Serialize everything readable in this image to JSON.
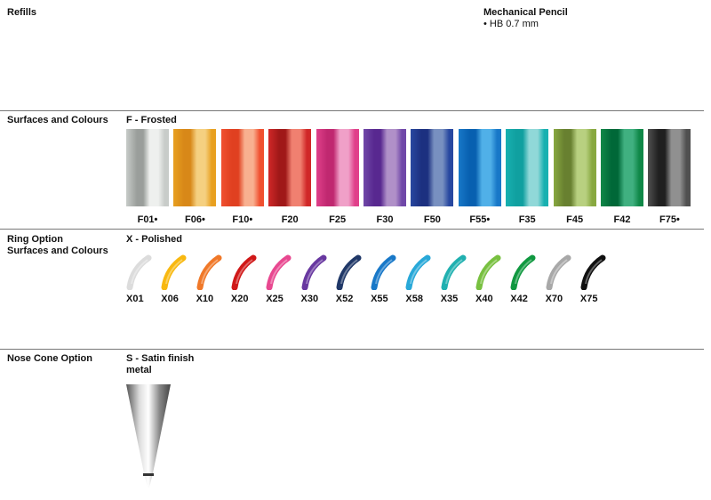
{
  "refills": {
    "heading": "Refills",
    "product": "Mechanical Pencil",
    "detail": "• HB 0.7 mm"
  },
  "surfaces": {
    "heading": "Surfaces and Colours",
    "subheading": "F - Frosted",
    "swatches": [
      {
        "code": "F01•",
        "color": "#c8ccc9",
        "dark": "#9a9e9b",
        "light": "#eef0ee"
      },
      {
        "code": "F06•",
        "color": "#e8a020",
        "dark": "#d88818",
        "light": "#f5d080"
      },
      {
        "code": "F10•",
        "color": "#f05030",
        "dark": "#e04020",
        "light": "#f8b090"
      },
      {
        "code": "F20",
        "color": "#d02828",
        "dark": "#a01818",
        "light": "#f08070"
      },
      {
        "code": "F25",
        "color": "#e0408a",
        "dark": "#c02870",
        "light": "#f0a0c8"
      },
      {
        "code": "F30",
        "color": "#7048a8",
        "dark": "#582890",
        "light": "#b090c8"
      },
      {
        "code": "F50",
        "color": "#2848a0",
        "dark": "#1c3080",
        "light": "#7890c0"
      },
      {
        "code": "F55•",
        "color": "#1878c8",
        "dark": "#0860b0",
        "light": "#50b0e8"
      },
      {
        "code": "F35",
        "color": "#18b0b0",
        "dark": "#10a0a0",
        "light": "#90d8d8"
      },
      {
        "code": "F45",
        "color": "#88a840",
        "dark": "#688030",
        "light": "#b8d080"
      },
      {
        "code": "F42",
        "color": "#108848",
        "dark": "#006838",
        "light": "#40b080"
      },
      {
        "code": "F75•",
        "color": "#505050",
        "dark": "#202020",
        "light": "#909090"
      }
    ]
  },
  "ring": {
    "heading_line1": "Ring Option",
    "heading_line2": "Surfaces and Colours",
    "subheading": "X - Polished",
    "items": [
      {
        "code": "X01",
        "color": "#dcdcdc"
      },
      {
        "code": "X06",
        "color": "#f8b810"
      },
      {
        "code": "X10",
        "color": "#f07828"
      },
      {
        "code": "X20",
        "color": "#d01818"
      },
      {
        "code": "X25",
        "color": "#e84890"
      },
      {
        "code": "X30",
        "color": "#6838a0"
      },
      {
        "code": "X52",
        "color": "#203868"
      },
      {
        "code": "X55",
        "color": "#1878c8"
      },
      {
        "code": "X58",
        "color": "#28a8d8"
      },
      {
        "code": "X35",
        "color": "#20b0b0"
      },
      {
        "code": "X40",
        "color": "#78c040"
      },
      {
        "code": "X42",
        "color": "#109840"
      },
      {
        "code": "X70",
        "color": "#a8a8a8"
      },
      {
        "code": "X75",
        "color": "#101010"
      }
    ]
  },
  "nose": {
    "heading": "Nose Cone Option",
    "subheading_line1": "S - Satin finish",
    "subheading_line2": "metal"
  }
}
